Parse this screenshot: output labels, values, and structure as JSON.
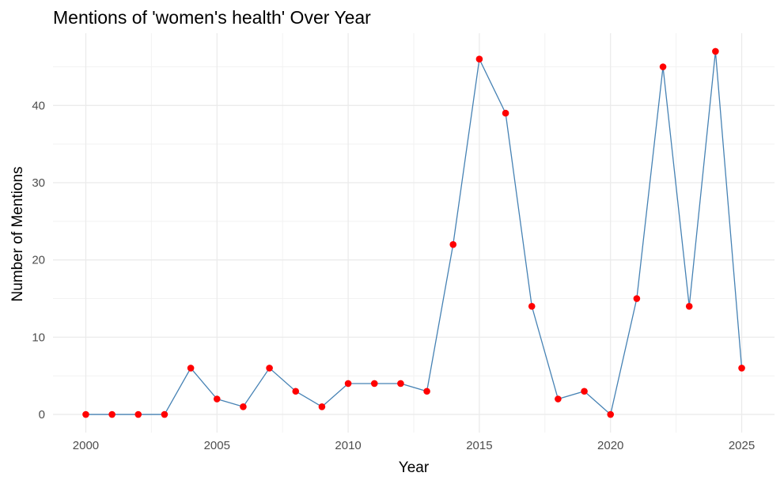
{
  "chart_data": {
    "type": "line",
    "title": "Mentions of 'women's health' Over Year",
    "xlabel": "Year",
    "ylabel": "Number of Mentions",
    "x": [
      2000,
      2001,
      2002,
      2003,
      2004,
      2005,
      2006,
      2007,
      2008,
      2009,
      2010,
      2011,
      2012,
      2013,
      2014,
      2015,
      2016,
      2017,
      2018,
      2019,
      2020,
      2021,
      2022,
      2023,
      2024,
      2025
    ],
    "series": [
      {
        "values": [
          0,
          0,
          0,
          0,
          6,
          2,
          1,
          6,
          3,
          1,
          4,
          4,
          4,
          3,
          22,
          46,
          39,
          14,
          2,
          3,
          0,
          15,
          45,
          14,
          47,
          6
        ]
      }
    ],
    "xticks": [
      "2000",
      "2005",
      "2010",
      "2015",
      "2020",
      "2025"
    ],
    "yticks": [
      "0",
      "10",
      "20",
      "30",
      "40"
    ],
    "xlim": [
      1998.75,
      2026.25
    ],
    "ylim": [
      -2.35,
      49.35
    ],
    "grid": true,
    "line_color": "#4682B4",
    "point_color": "#FF0000"
  }
}
